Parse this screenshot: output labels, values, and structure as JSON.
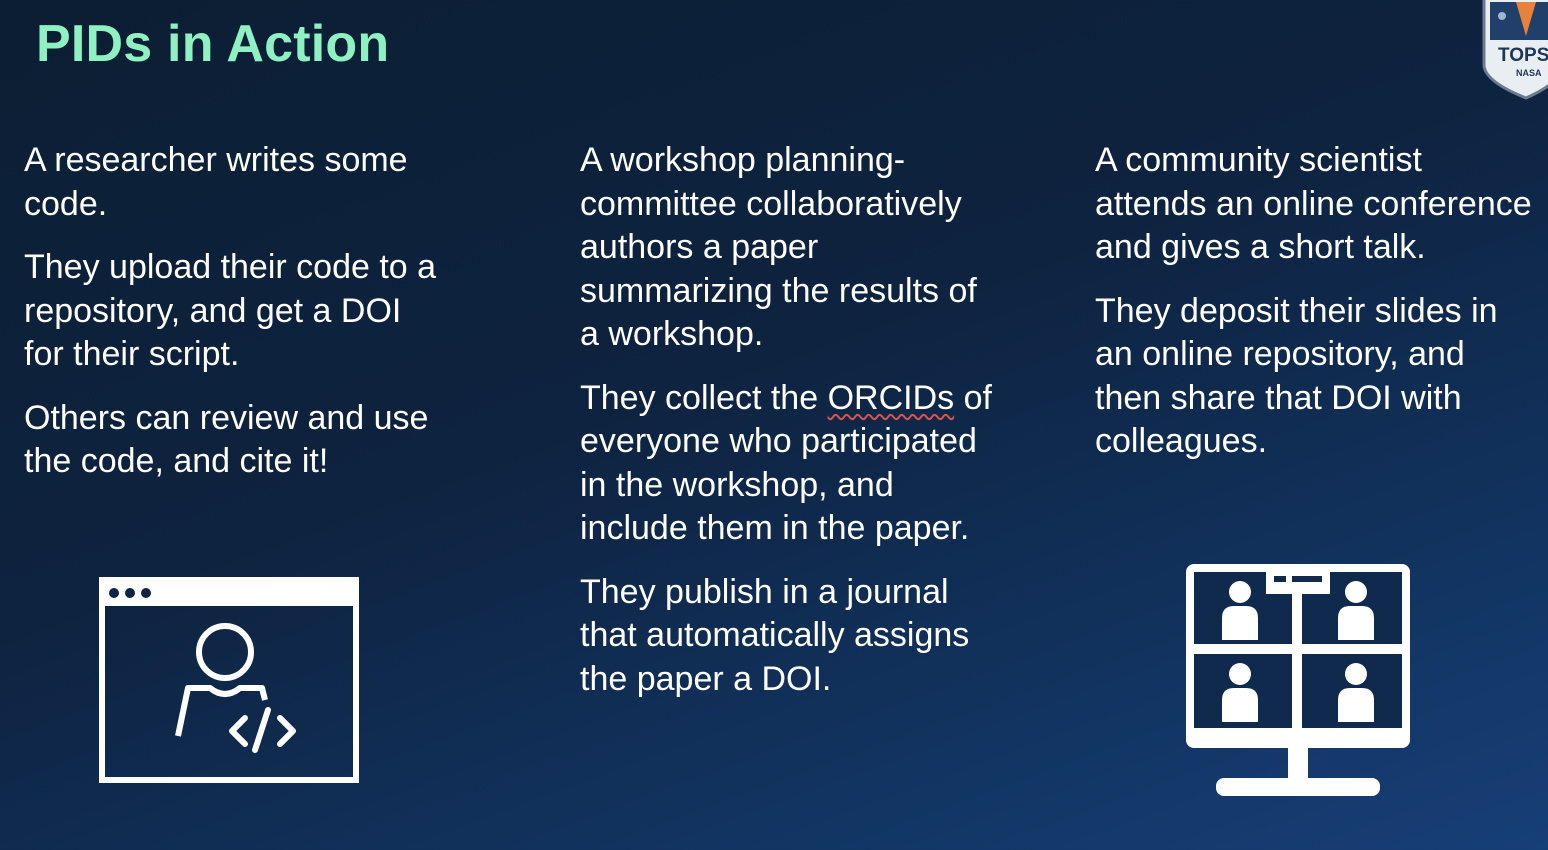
{
  "slide": {
    "title": "PIDs in Action"
  },
  "columns": [
    {
      "paragraphs": [
        "A researcher writes some code.",
        "They upload their code to a repository, and get a DOI for their script.",
        "Others can review and use the code, and cite it!"
      ],
      "illustration": "developer-window-icon"
    },
    {
      "paragraphs": [
        "A workshop planning-committee collaboratively authors a paper summarizing the results of a workshop.",
        "They collect the ",
        "of everyone who participated in the workshop, and include them in the paper.",
        "They publish in a journal that automatically assigns the paper a DOI."
      ],
      "underlined_word": "ORCIDs",
      "illustration": "video-conference-none"
    },
    {
      "paragraphs": [
        "A community scientist attends an online conference and gives a short talk.",
        "They deposit their slides in an online repository, and then share that DOI with colleagues."
      ],
      "illustration": "video-meeting-monitor-icon"
    }
  ],
  "badge": {
    "text": "TOPS",
    "subtext": "NASA"
  },
  "colors": {
    "title": "#8ff0c1",
    "text": "#ffffff",
    "background_top": "#0b1e33",
    "background_bottom": "#173f78"
  }
}
